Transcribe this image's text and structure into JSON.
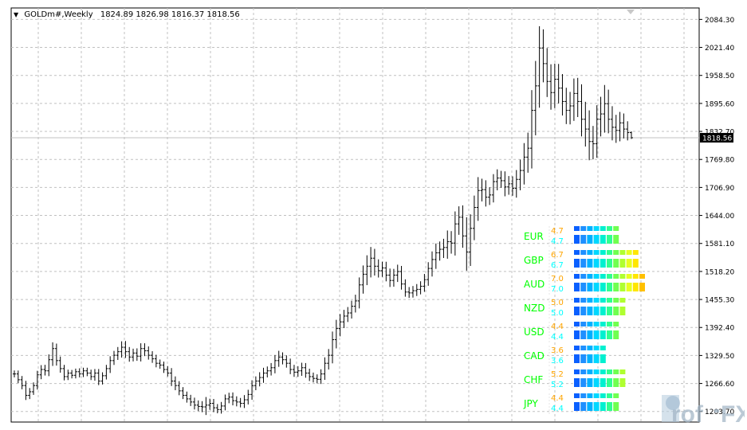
{
  "chart_data": {
    "type": "ohlc",
    "symbol": "GOLDm#,Weekly",
    "quote": {
      "open": "1824.89",
      "high": "1826.98",
      "low": "1816.37",
      "close": "1818.56"
    },
    "current_price": 1818.56,
    "current_price_label": "1818.56",
    "ylim": [
      1180,
      2110
    ],
    "y_ticks": [
      {
        "v": 2084.3,
        "label": "2084.30"
      },
      {
        "v": 2021.4,
        "label": "2021.40"
      },
      {
        "v": 1958.5,
        "label": "1958.50"
      },
      {
        "v": 1895.6,
        "label": "1895.60"
      },
      {
        "v": 1832.7,
        "label": "1832.70"
      },
      {
        "v": 1769.8,
        "label": "1769.80"
      },
      {
        "v": 1706.9,
        "label": "1706.90"
      },
      {
        "v": 1644.0,
        "label": "1644.00"
      },
      {
        "v": 1581.1,
        "label": "1581.10"
      },
      {
        "v": 1518.2,
        "label": "1518.20"
      },
      {
        "v": 1455.3,
        "label": "1455.30"
      },
      {
        "v": 1392.4,
        "label": "1392.40"
      },
      {
        "v": 1329.5,
        "label": "1329.50"
      },
      {
        "v": 1266.6,
        "label": "1266.60"
      },
      {
        "v": 1203.7,
        "label": "1203.70"
      }
    ],
    "closes": [
      1288,
      1275,
      1262,
      1240,
      1248,
      1262,
      1286,
      1298,
      1295,
      1320,
      1345,
      1318,
      1300,
      1282,
      1290,
      1285,
      1293,
      1288,
      1295,
      1290,
      1282,
      1290,
      1272,
      1284,
      1300,
      1318,
      1330,
      1338,
      1348,
      1338,
      1326,
      1335,
      1328,
      1345,
      1340,
      1330,
      1322,
      1312,
      1308,
      1298,
      1290,
      1272,
      1262,
      1250,
      1240,
      1232,
      1225,
      1218,
      1215,
      1214,
      1218,
      1222,
      1212,
      1208,
      1216,
      1232,
      1236,
      1228,
      1225,
      1222,
      1230,
      1242,
      1262,
      1272,
      1280,
      1290,
      1295,
      1302,
      1318,
      1326,
      1320,
      1312,
      1298,
      1292,
      1295,
      1302,
      1290,
      1282,
      1278,
      1276,
      1288,
      1312,
      1330,
      1365,
      1390,
      1405,
      1418,
      1425,
      1440,
      1452,
      1488,
      1512,
      1530,
      1548,
      1530,
      1520,
      1526,
      1510,
      1498,
      1510,
      1518,
      1490,
      1472,
      1470,
      1475,
      1478,
      1485,
      1500,
      1525,
      1545,
      1560,
      1568,
      1572,
      1585,
      1582,
      1625,
      1640,
      1598,
      1562,
      1615,
      1662,
      1700,
      1702,
      1685,
      1690,
      1720,
      1728,
      1722,
      1708,
      1715,
      1705,
      1725,
      1745,
      1775,
      1795,
      1880,
      1935,
      2020,
      1985,
      1945,
      1920,
      1950,
      1930,
      1900,
      1880,
      1890,
      1918,
      1900,
      1860,
      1838,
      1810,
      1805,
      1860,
      1872,
      1895,
      1860,
      1842,
      1835,
      1852,
      1838,
      1830,
      1818.56
    ],
    "ranges": [
      22,
      22,
      24,
      30,
      24,
      20,
      26,
      28,
      30,
      34,
      40,
      32,
      26,
      24,
      22,
      20,
      20,
      22,
      20,
      20,
      22,
      26,
      26,
      22,
      24,
      28,
      28,
      30,
      38,
      40,
      30,
      28,
      30,
      34,
      34,
      28,
      26,
      26,
      24,
      22,
      22,
      32,
      30,
      28,
      24,
      24,
      26,
      28,
      30,
      34,
      52,
      30,
      28,
      24,
      26,
      28,
      28,
      30,
      28,
      26,
      30,
      30,
      34,
      30,
      34,
      34,
      28,
      30,
      36,
      40,
      30,
      28,
      30,
      30,
      30,
      32,
      30,
      28,
      26,
      26,
      30,
      38,
      40,
      52,
      56,
      50,
      40,
      38,
      36,
      40,
      48,
      56,
      70,
      72,
      60,
      44,
      40,
      40,
      42,
      40,
      44,
      36,
      30,
      32,
      30,
      34,
      32,
      36,
      40,
      52,
      60,
      50,
      56,
      72,
      68,
      80,
      70,
      76,
      120,
      90,
      76,
      86,
      70,
      60,
      50,
      48,
      56,
      46,
      60,
      50,
      48,
      60,
      70,
      90,
      100,
      130,
      160,
      140,
      120,
      100,
      110,
      100,
      98,
      90,
      88,
      90,
      96,
      100,
      110,
      112,
      120,
      100,
      90,
      110,
      120,
      90,
      84,
      80,
      70,
      60,
      50,
      8
    ],
    "strength_table": [
      {
        "currency": "EUR",
        "v1": 4.7,
        "v2": 4.7,
        "s1": "4.7",
        "s2": "4.7"
      },
      {
        "currency": "GBP",
        "v1": 6.7,
        "v2": 6.7,
        "s1": "6.7",
        "s2": "6.7"
      },
      {
        "currency": "AUD",
        "v1": 7.0,
        "v2": 7.0,
        "s1": "7.0",
        "s2": "7.0"
      },
      {
        "currency": "NZD",
        "v1": 5.0,
        "v2": 5.0,
        "s1": "5.0",
        "s2": "5.0"
      },
      {
        "currency": "USD",
        "v1": 4.4,
        "v2": 4.4,
        "s1": "4.4",
        "s2": "4.4"
      },
      {
        "currency": "CAD",
        "v1": 3.6,
        "v2": 3.6,
        "s1": "3.6",
        "s2": "3.6"
      },
      {
        "currency": "CHF",
        "v1": 5.2,
        "v2": 5.2,
        "s1": "5.2",
        "s2": "5.2"
      },
      {
        "currency": "JPY",
        "v1": 4.4,
        "v2": 4.4,
        "s1": "4.4",
        "s2": "4.4"
      }
    ],
    "colors": {
      "currency_label": "#00ff00",
      "value_top": "#ffa500",
      "value_bottom": "#00ffff",
      "bars": "#000000",
      "grid": "#c0c0c0",
      "price_line": "#c0c0c0"
    },
    "grid": true
  },
  "watermark_text": "Prof FX"
}
